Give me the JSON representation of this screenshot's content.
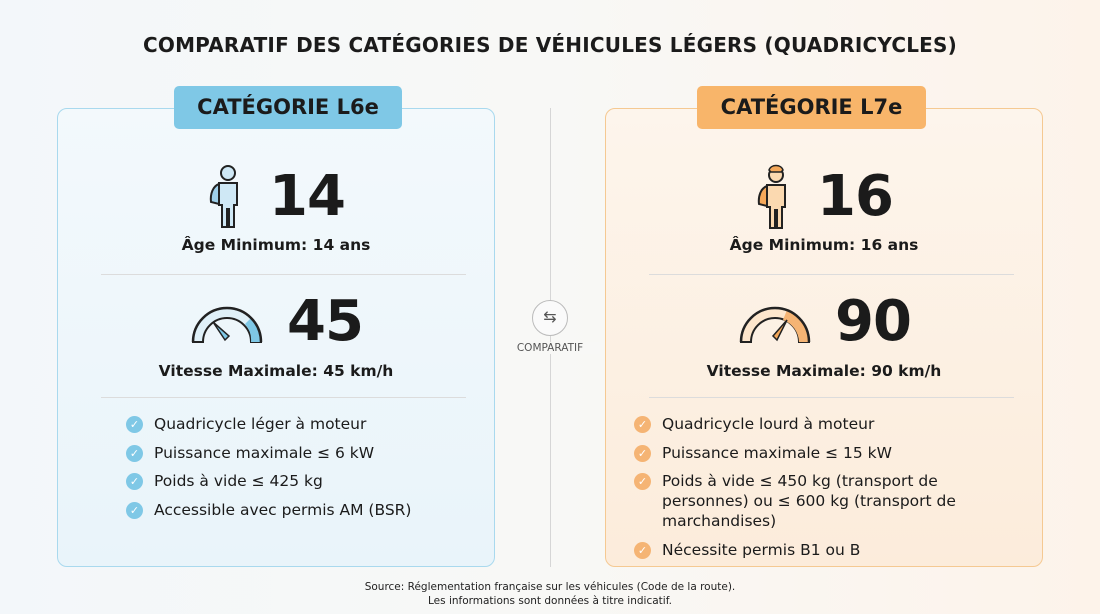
{
  "title": "COMPARATIF DES CATÉGORIES DE VÉHICULES LÉGERS (QUADRICYCLES)",
  "left": {
    "badge": "CATÉGORIE L6e",
    "age_value": "14",
    "age_label": "Âge Minimum: 14 ans",
    "speed_value": "45",
    "speed_label": "Vitesse Maximale: 45 km/h",
    "speed_gauge_level": 0.5,
    "color": "#7fc8e6",
    "items": [
      "Quadricycle léger à moteur",
      "Puissance maximale ≤ 6 kW",
      "Poids à vide ≤ 425 kg",
      "Accessible avec permis AM (BSR)"
    ]
  },
  "right": {
    "badge": "CATÉGORIE L7e",
    "age_value": "16",
    "age_label": "Âge Minimum: 16 ans",
    "speed_value": "90",
    "speed_label": "Vitesse Maximale: 90 km/h",
    "speed_gauge_level": 0.75,
    "color": "#f8b56a",
    "items": [
      "Quadricycle lourd à moteur",
      "Puissance maximale ≤ 15 kW",
      "Poids à vide ≤ 450 kg (transport de personnes) ou ≤ 600 kg (transport de marchandises)",
      "Nécessite permis B1 ou B"
    ]
  },
  "center": {
    "icon": "swap-arrows-icon",
    "label": "COMPARATIF"
  },
  "footer": {
    "line1": "Source: Réglementation française sur les véhicules (Code de la route).",
    "line2": "Les informations sont données à titre indicatif."
  }
}
